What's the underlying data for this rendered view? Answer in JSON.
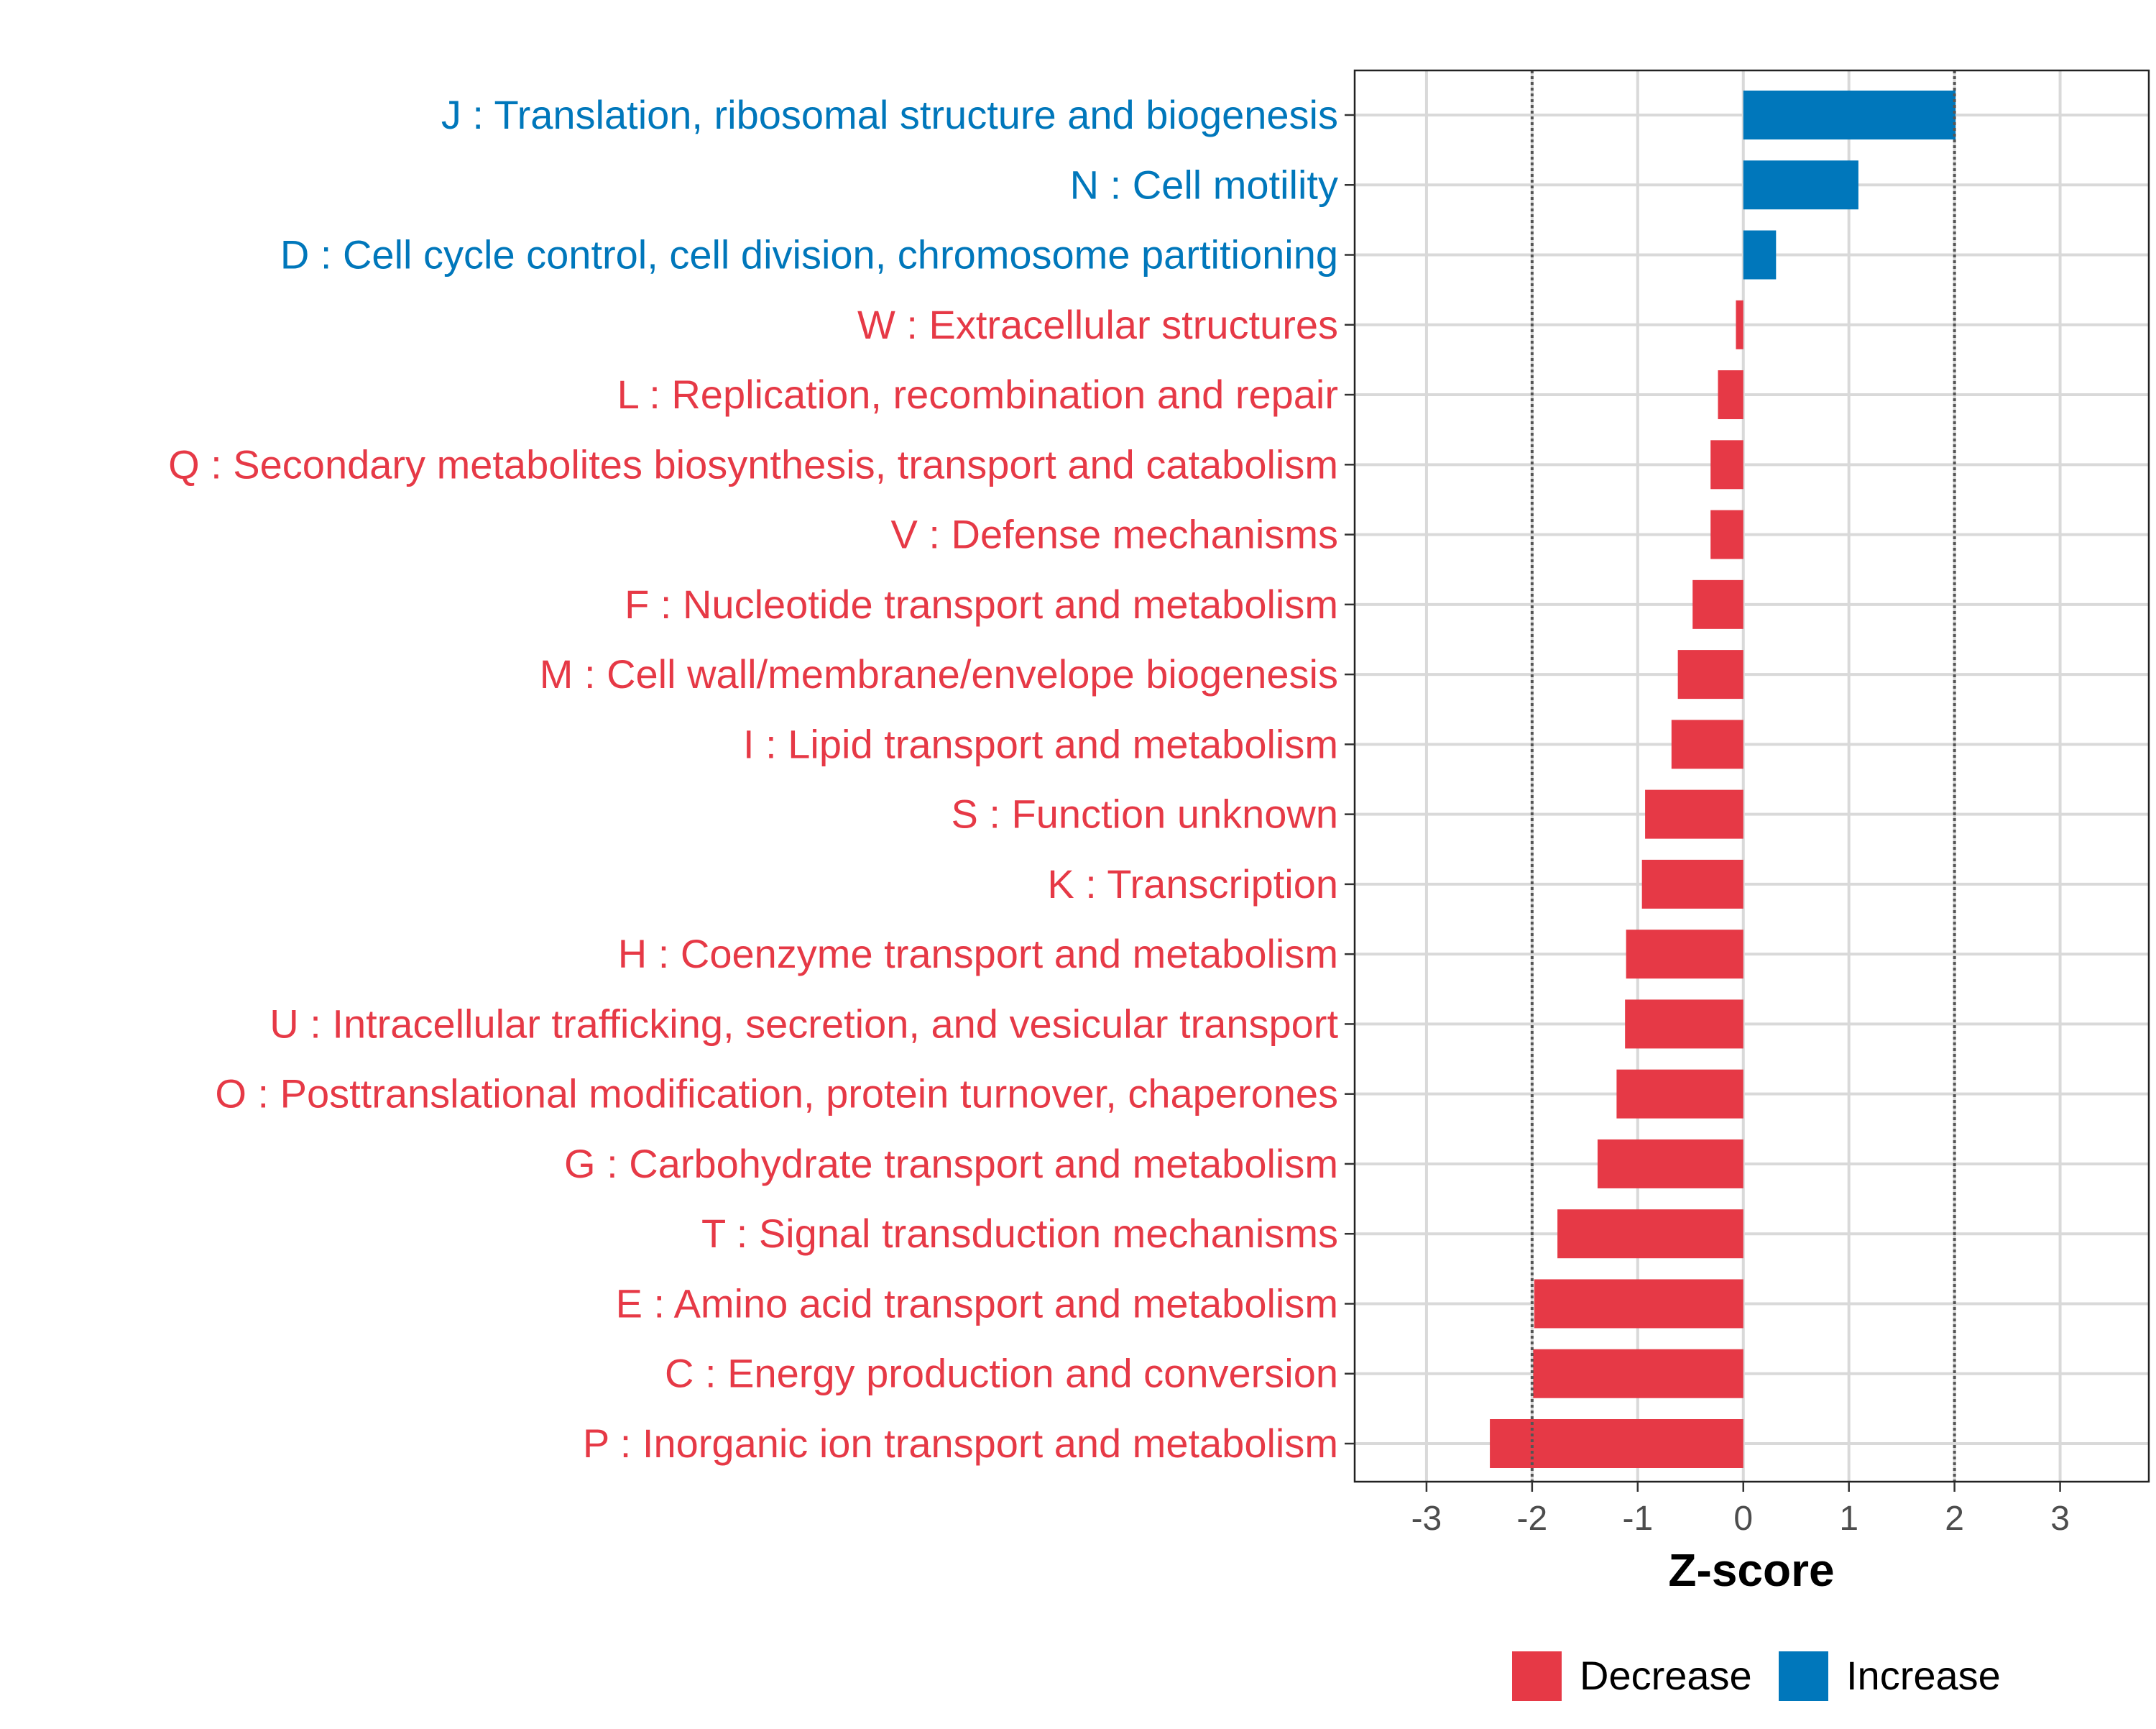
{
  "chart_data": {
    "type": "bar",
    "orientation": "horizontal",
    "title": "",
    "xlabel": "Z-score",
    "ylabel": "",
    "xlim": [
      -3.68,
      3.84
    ],
    "xticks": [
      -3,
      -2,
      -1,
      0,
      1,
      2,
      3
    ],
    "xtick_labels": [
      "-3",
      "-2",
      "-1",
      "0",
      "1",
      "2",
      "3"
    ],
    "reference_lines": [
      -2,
      2
    ],
    "grid": true,
    "colors": {
      "Decrease": "#E63946",
      "Increase": "#0077BB"
    },
    "categories": [
      "J : Translation, ribosomal structure and biogenesis",
      "N : Cell motility",
      "D : Cell cycle control, cell division, chromosome partitioning",
      "W : Extracellular structures",
      "L : Replication, recombination and repair",
      "Q : Secondary metabolites biosynthesis, transport and catabolism",
      "V : Defense mechanisms",
      "F : Nucleotide transport and metabolism",
      "M : Cell wall/membrane/envelope biogenesis",
      "I : Lipid transport and metabolism",
      "S : Function unknown",
      "K : Transcription",
      "H : Coenzyme transport and metabolism",
      "U : Intracellular trafficking, secretion, and vesicular transport",
      "O : Posttranslational modification, protein turnover, chaperones",
      "G : Carbohydrate transport and metabolism",
      "T : Signal transduction mechanisms",
      "E : Amino acid transport and metabolism",
      "C : Energy production and conversion",
      "P : Inorganic ion transport and metabolism"
    ],
    "values": [
      2.01,
      1.09,
      0.31,
      -0.07,
      -0.24,
      -0.31,
      -0.31,
      -0.48,
      -0.62,
      -0.68,
      -0.93,
      -0.96,
      -1.11,
      -1.12,
      -1.2,
      -1.38,
      -1.76,
      -1.98,
      -1.99,
      -2.4
    ],
    "legend": {
      "position": "bottom",
      "entries": [
        "Decrease",
        "Increase"
      ]
    }
  }
}
